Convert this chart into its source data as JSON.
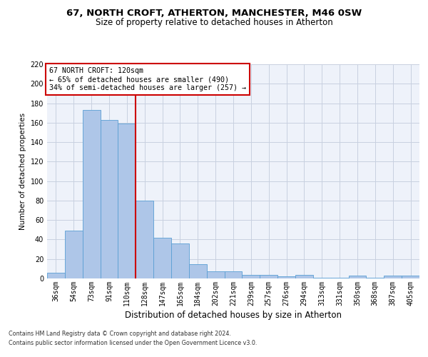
{
  "title1": "67, NORTH CROFT, ATHERTON, MANCHESTER, M46 0SW",
  "title2": "Size of property relative to detached houses in Atherton",
  "xlabel": "Distribution of detached houses by size in Atherton",
  "ylabel": "Number of detached properties",
  "footnote1": "Contains HM Land Registry data © Crown copyright and database right 2024.",
  "footnote2": "Contains public sector information licensed under the Open Government Licence v3.0.",
  "bar_labels": [
    "36sqm",
    "54sqm",
    "73sqm",
    "91sqm",
    "110sqm",
    "128sqm",
    "147sqm",
    "165sqm",
    "184sqm",
    "202sqm",
    "221sqm",
    "239sqm",
    "257sqm",
    "276sqm",
    "294sqm",
    "313sqm",
    "331sqm",
    "350sqm",
    "368sqm",
    "387sqm",
    "405sqm"
  ],
  "bar_values": [
    6,
    49,
    173,
    163,
    159,
    80,
    42,
    36,
    15,
    7,
    7,
    4,
    4,
    2,
    4,
    1,
    1,
    3,
    1,
    3,
    3
  ],
  "bar_color": "#aec6e8",
  "bar_edge_color": "#5a9fd4",
  "vline_x": 4.5,
  "vline_color": "#cc0000",
  "annotation_line1": "67 NORTH CROFT: 120sqm",
  "annotation_line2": "← 65% of detached houses are smaller (490)",
  "annotation_line3": "34% of semi-detached houses are larger (257) →",
  "annotation_box_color": "#cc0000",
  "ylim": [
    0,
    220
  ],
  "yticks": [
    0,
    20,
    40,
    60,
    80,
    100,
    120,
    140,
    160,
    180,
    200,
    220
  ],
  "grid_color": "#c8d0e0",
  "bg_color": "#eef2fa",
  "title1_fontsize": 9.5,
  "title2_fontsize": 8.5,
  "xlabel_fontsize": 8.5,
  "ylabel_fontsize": 7.5,
  "tick_fontsize": 7,
  "footnote_fontsize": 5.8,
  "annotation_fontsize": 7.2
}
